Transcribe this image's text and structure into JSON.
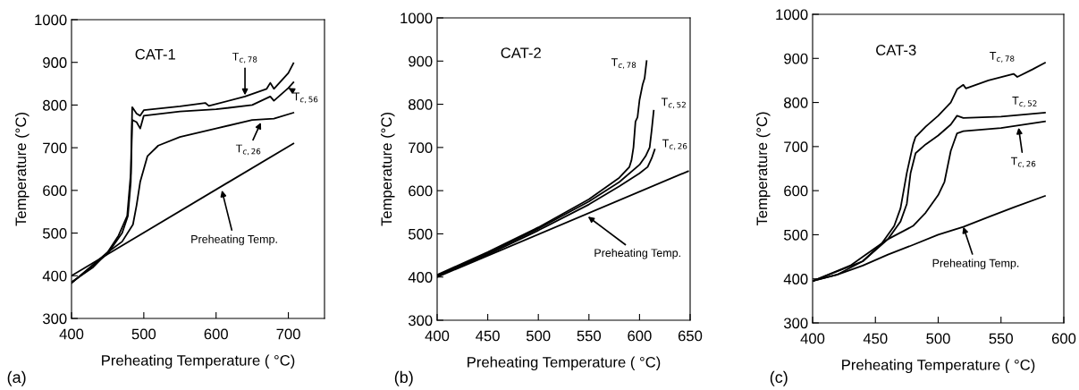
{
  "chart_data": [
    {
      "type": "line",
      "xlabel": "Preheating Temperature ( °C)",
      "ylabel": "Temperature (°C)",
      "xlim": [
        400,
        750
      ],
      "xticks": [
        400,
        500,
        600,
        700
      ],
      "ylim": [
        300,
        1000
      ],
      "yticks": [
        300,
        400,
        500,
        600,
        700,
        800,
        900,
        1000
      ],
      "grid": false,
      "annotations": [
        "(a)",
        "CAT-1",
        {
          "text": "T$_{c,78}$",
          "x": 640,
          "y": 823
        },
        {
          "text": "T$_{c,56}$",
          "x": 700,
          "y": 840
        },
        {
          "text": "T$_{c,26}$",
          "x": 662,
          "y": 759
        },
        {
          "text": "Preheating Temp.",
          "x": 608,
          "y": 600
        }
      ],
      "series": [
        {
          "color": "#000000",
          "x": [
            400,
            707
          ],
          "values": [
            400,
            710
          ]
        },
        {
          "color": "#000000",
          "x": [
            400,
            430,
            450,
            465,
            477,
            482,
            484,
            490,
            495,
            500,
            550,
            585,
            590,
            640,
            670,
            675,
            680,
            700,
            707
          ],
          "values": [
            385,
            420,
            455,
            494,
            540,
            640,
            795,
            780,
            775,
            788,
            797,
            805,
            798,
            820,
            838,
            852,
            838,
            875,
            898
          ]
        },
        {
          "color": "#000000",
          "x": [
            400,
            450,
            470,
            478,
            482,
            484,
            490,
            495,
            500,
            550,
            600,
            650,
            675,
            680,
            700,
            707
          ],
          "values": [
            383,
            452,
            500,
            540,
            620,
            765,
            760,
            745,
            775,
            785,
            790,
            800,
            820,
            810,
            840,
            853
          ]
        },
        {
          "color": "#000000",
          "x": [
            400,
            450,
            470,
            485,
            490,
            495,
            500,
            505,
            520,
            550,
            600,
            650,
            680,
            707
          ],
          "values": [
            383,
            455,
            480,
            520,
            565,
            620,
            650,
            680,
            705,
            725,
            745,
            765,
            768,
            782
          ]
        }
      ]
    },
    {
      "type": "line",
      "xlabel": "Preheating Temperature ( °C)",
      "ylabel": "Temperature (°C)",
      "xlim": [
        400,
        650
      ],
      "xticks": [
        400,
        450,
        500,
        550,
        600,
        650
      ],
      "ylim": [
        300,
        1000
      ],
      "yticks": [
        300,
        400,
        500,
        600,
        700,
        800,
        900,
        1000
      ],
      "grid": false,
      "annotations": [
        "(b)",
        "CAT-2",
        {
          "text": "T$_{c,78}$",
          "x": 607,
          "y": 900
        },
        {
          "text": "T$_{c,52}$",
          "x": 614,
          "y": 785
        },
        {
          "text": "T$_{c,26}$",
          "x": 615,
          "y": 695
        },
        {
          "text": "Preheating Temp.",
          "x": 549,
          "y": 540
        }
      ],
      "series": [
        {
          "color": "#000000",
          "x": [
            400,
            648
          ],
          "values": [
            400,
            645
          ]
        },
        {
          "color": "#000000",
          "x": [
            400,
            450,
            500,
            550,
            580,
            590,
            592,
            594,
            596,
            598,
            600,
            603,
            605,
            607
          ],
          "values": [
            405,
            458,
            515,
            580,
            630,
            655,
            670,
            700,
            760,
            770,
            810,
            845,
            860,
            900
          ]
        },
        {
          "color": "#000000",
          "x": [
            400,
            450,
            500,
            550,
            580,
            600,
            606,
            610,
            612,
            614
          ],
          "values": [
            403,
            455,
            512,
            575,
            620,
            660,
            680,
            700,
            740,
            785
          ]
        },
        {
          "color": "#000000",
          "x": [
            400,
            450,
            500,
            550,
            580,
            600,
            608,
            612,
            615
          ],
          "values": [
            402,
            452,
            508,
            568,
            610,
            640,
            655,
            675,
            695
          ]
        }
      ]
    },
    {
      "type": "line",
      "xlabel": "Preheating Temperature ( °C)",
      "ylabel": "Temperature (°C)",
      "xlim": [
        400,
        600
      ],
      "xticks": [
        400,
        450,
        500,
        550,
        600
      ],
      "ylim": [
        300,
        1000
      ],
      "yticks": [
        300,
        400,
        500,
        600,
        700,
        800,
        900,
        1000
      ],
      "grid": false,
      "annotations": [
        "(c)",
        "CAT-3",
        "T$_{c,78}$",
        "T$_{c,52}$",
        {
          "text": "T$_{c,26}$",
          "x": 564,
          "y": 743
        },
        {
          "text": "Preheating Temp.",
          "x": 520,
          "y": 518
        }
      ],
      "series": [
        {
          "color": "#000000",
          "x": [
            400,
            420,
            440,
            460,
            480,
            500,
            520,
            540,
            560,
            585
          ],
          "values": [
            395,
            410,
            430,
            455,
            477,
            500,
            518,
            540,
            562,
            588
          ]
        },
        {
          "color": "#000000",
          "x": [
            400,
            420,
            440,
            455,
            465,
            470,
            475,
            480,
            482,
            490,
            500,
            510,
            515,
            520,
            522,
            540,
            560,
            563,
            575,
            585
          ],
          "values": [
            395,
            410,
            440,
            480,
            520,
            560,
            640,
            705,
            722,
            745,
            770,
            800,
            830,
            840,
            832,
            850,
            865,
            858,
            875,
            890
          ]
        },
        {
          "color": "#000000",
          "x": [
            400,
            440,
            460,
            470,
            475,
            478,
            482,
            490,
            500,
            510,
            515,
            520,
            550,
            585
          ],
          "values": [
            395,
            440,
            490,
            530,
            570,
            640,
            685,
            705,
            725,
            750,
            770,
            765,
            768,
            777
          ]
        },
        {
          "color": "#000000",
          "x": [
            400,
            430,
            440,
            460,
            480,
            490,
            500,
            505,
            510,
            515,
            520,
            550,
            585
          ],
          "values": [
            395,
            430,
            450,
            490,
            520,
            550,
            590,
            620,
            690,
            730,
            735,
            742,
            757
          ]
        }
      ]
    }
  ]
}
